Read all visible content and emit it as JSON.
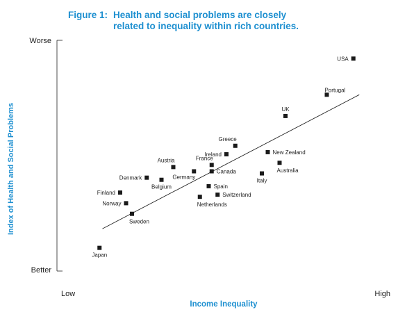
{
  "figure": {
    "label": "Figure 1:",
    "title_line1": "Health and social problems are closely",
    "title_line2": "related to inequality within rich countries."
  },
  "chart_data": {
    "type": "scatter",
    "title": "Health and social problems are closely related to inequality within rich countries.",
    "xlabel": "Income Inequality",
    "ylabel": "Index of Health and Social Problems",
    "x_tick_labels": [
      "Low",
      "High"
    ],
    "y_tick_labels": [
      "Better",
      "Worse"
    ],
    "xlim": [
      0,
      100
    ],
    "ylim": [
      0,
      100
    ],
    "grid": false,
    "accent_color": "#1d8fd0",
    "points": [
      {
        "label": "USA",
        "x": 95,
        "y": 95,
        "label_pos": "left"
      },
      {
        "label": "Portugal",
        "x": 86,
        "y": 78,
        "label_pos": "above-right"
      },
      {
        "label": "UK",
        "x": 72,
        "y": 68,
        "label_pos": "above"
      },
      {
        "label": "Greece",
        "x": 55,
        "y": 54,
        "label_pos": "above-left"
      },
      {
        "label": "Ireland",
        "x": 52,
        "y": 50,
        "label_pos": "left"
      },
      {
        "label": "New Zealand",
        "x": 66,
        "y": 51,
        "label_pos": "right"
      },
      {
        "label": "Australia",
        "x": 70,
        "y": 46,
        "label_pos": "below-right"
      },
      {
        "label": "France",
        "x": 47,
        "y": 45,
        "label_pos": "above-left"
      },
      {
        "label": "Canada",
        "x": 47,
        "y": 42,
        "label_pos": "right"
      },
      {
        "label": "Austria",
        "x": 34,
        "y": 44,
        "label_pos": "above-left"
      },
      {
        "label": "Germany",
        "x": 41,
        "y": 42,
        "label_pos": "below-left"
      },
      {
        "label": "Italy",
        "x": 64,
        "y": 41,
        "label_pos": "below"
      },
      {
        "label": "Denmark",
        "x": 25,
        "y": 39,
        "label_pos": "left"
      },
      {
        "label": "Belgium",
        "x": 30,
        "y": 38,
        "label_pos": "below"
      },
      {
        "label": "Spain",
        "x": 46,
        "y": 35,
        "label_pos": "right"
      },
      {
        "label": "Switzerland",
        "x": 49,
        "y": 31,
        "label_pos": "right"
      },
      {
        "label": "Netherlands",
        "x": 43,
        "y": 30,
        "label_pos": "below-right"
      },
      {
        "label": "Finland",
        "x": 16,
        "y": 32,
        "label_pos": "left"
      },
      {
        "label": "Norway",
        "x": 18,
        "y": 27,
        "label_pos": "left"
      },
      {
        "label": "Sweden",
        "x": 20,
        "y": 22,
        "label_pos": "below-right"
      },
      {
        "label": "Japan",
        "x": 9,
        "y": 6,
        "label_pos": "below"
      }
    ],
    "trend_line": {
      "x": [
        10,
        97
      ],
      "y": [
        15,
        78
      ]
    }
  }
}
